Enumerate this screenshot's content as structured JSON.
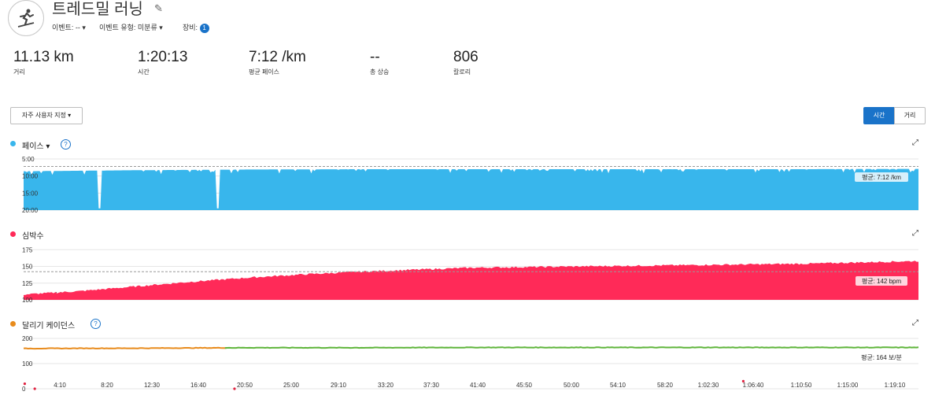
{
  "header": {
    "title": "트레드밀 러닝",
    "event_label": "이벤트: --",
    "event_type_label": "이벤트 유형: 미분류",
    "gear_label": "장비:",
    "gear_count": "1"
  },
  "stats": [
    {
      "value": "11.13 km",
      "label": "거리"
    },
    {
      "value": "1:20:13",
      "label": "시간"
    },
    {
      "value": "7:12 /km",
      "label": "평균 페이스"
    },
    {
      "value": "--",
      "label": "총 상승"
    },
    {
      "value": "806",
      "label": "칼로리"
    }
  ],
  "controls": {
    "view_dropdown": "자주 사용자 지정",
    "toggle_time": "시간",
    "toggle_distance": "거리"
  },
  "colors": {
    "pace": "#38b6ec",
    "hr": "#ff2a58",
    "cadence_orange": "#e88b1c",
    "cadence_green": "#5fb53b",
    "accent": "#1a73c9"
  },
  "x_ticks": [
    "4:10",
    "8:20",
    "12:30",
    "16:40",
    "20:50",
    "25:00",
    "29:10",
    "33:20",
    "37:30",
    "41:40",
    "45:50",
    "50:00",
    "54:10",
    "58:20",
    "1:02:30",
    "1:06:40",
    "1:10:50",
    "1:15:00",
    "1:19:10"
  ],
  "sections": {
    "pace": {
      "title": "페이스",
      "y_ticks": [
        "5:00",
        "10:00",
        "15:00",
        "20:00"
      ],
      "avg_label": "평균: 7:12 /km"
    },
    "hr": {
      "title": "심박수",
      "y_ticks": [
        "175",
        "150",
        "125",
        "100"
      ],
      "avg_label": "평균: 142 bpm"
    },
    "cadence": {
      "title": "달리기 케이던스",
      "y_ticks": [
        "200",
        "100",
        "0"
      ],
      "avg_label": "평균: 164 보/분"
    }
  },
  "chart_data": [
    {
      "type": "area",
      "title": "페이스",
      "x_unit": "minutes",
      "xlim": [
        0,
        80.2
      ],
      "ylim": [
        20,
        5
      ],
      "y_reversed": true,
      "avg": 7.2,
      "x": [
        0,
        10,
        20,
        30,
        40,
        50,
        60,
        70,
        80
      ],
      "y": [
        8.6,
        8.3,
        8.1,
        8.0,
        8.0,
        8.0,
        8.0,
        8.0,
        7.9
      ]
    },
    {
      "type": "area",
      "title": "심박수",
      "x_unit": "minutes",
      "xlim": [
        0,
        80.2
      ],
      "ylim": [
        100,
        180
      ],
      "avg": 142,
      "x": [
        0,
        5,
        10,
        15,
        20,
        25,
        30,
        35,
        40,
        45,
        50,
        55,
        60,
        65,
        70,
        75,
        80
      ],
      "y": [
        108,
        113,
        120,
        127,
        133,
        138,
        142,
        145,
        148,
        149,
        150,
        151,
        152,
        153,
        154,
        156,
        158
      ]
    },
    {
      "type": "line",
      "title": "달리기 케이던스",
      "x_unit": "minutes",
      "xlim": [
        0,
        80.2
      ],
      "ylim": [
        0,
        200
      ],
      "avg": 164,
      "x": [
        0,
        10,
        20,
        30,
        40,
        50,
        60,
        70,
        80
      ],
      "y": [
        160,
        161,
        163,
        163,
        164,
        164,
        164,
        164,
        164
      ]
    }
  ]
}
